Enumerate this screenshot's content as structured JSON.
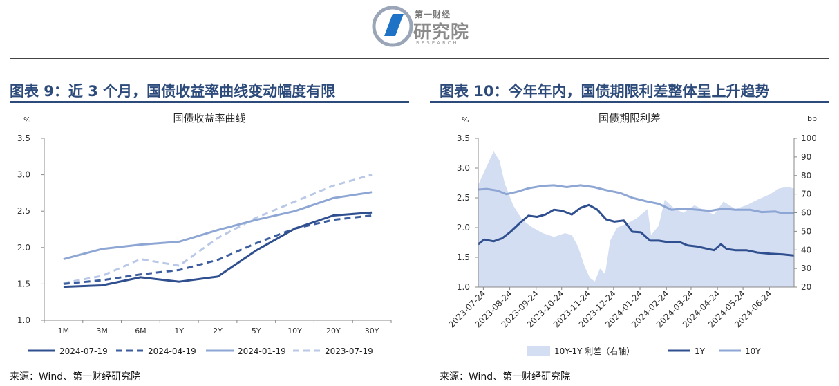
{
  "header": {
    "logo_small": "第一财经",
    "logo_main": "研究院",
    "logo_sub": "RESEARCH"
  },
  "left": {
    "figure_title": "图表 9：近 3 个月，国债收益率曲线变动幅度有限",
    "source": "来源：Wind、第一财经研究院"
  },
  "right": {
    "figure_title": "图表 10：今年年内，国债期限利差整体呈上升趋势",
    "source": "来源：Wind、第一财经研究院"
  },
  "colors": {
    "title_blue": "#2c4a7a",
    "dark": "#2f4f8f",
    "mid": "#4f6fad",
    "light": "#8ea6d4",
    "faint": "#b8c8e6",
    "area": "#d3def3"
  },
  "chart_data": [
    {
      "type": "line",
      "title": "国债收益率曲线",
      "ylabel": "%",
      "ylim": [
        1.0,
        3.5
      ],
      "yticks": [
        "3.5",
        "3.0",
        "2.5",
        "2.0",
        "1.5",
        "1.0"
      ],
      "categories": [
        "1M",
        "3M",
        "6M",
        "1Y",
        "2Y",
        "5Y",
        "10Y",
        "20Y",
        "30Y"
      ],
      "series": [
        {
          "name": "2024-07-19",
          "style": "solid",
          "color": "#2f4f8f",
          "values": [
            1.46,
            1.48,
            1.59,
            1.53,
            1.6,
            1.96,
            2.26,
            2.44,
            2.48
          ]
        },
        {
          "name": "2024-04-19",
          "style": "dashed",
          "color": "#3d5e9e",
          "values": [
            1.5,
            1.55,
            1.63,
            1.69,
            1.83,
            2.06,
            2.26,
            2.38,
            2.44
          ]
        },
        {
          "name": "2024-01-19",
          "style": "solid",
          "color": "#8ea6d4",
          "values": [
            1.84,
            1.98,
            2.04,
            2.08,
            2.24,
            2.38,
            2.5,
            2.68,
            2.76
          ]
        },
        {
          "name": "2023-07-19",
          "style": "dashed",
          "color": "#b8c8e6",
          "values": [
            1.51,
            1.61,
            1.84,
            1.75,
            2.13,
            2.41,
            2.63,
            2.85,
            3.0
          ]
        }
      ],
      "legend_position": "bottom",
      "grid": false
    },
    {
      "type": "line",
      "title": "国债期限利差",
      "ylabel": "%",
      "y2label": "bp",
      "ylim": [
        1.0,
        3.5
      ],
      "y2lim": [
        20,
        100
      ],
      "yticks": [
        "3.5",
        "3.0",
        "2.5",
        "2.0",
        "1.5",
        "1.0"
      ],
      "y2ticks": [
        "100",
        "90",
        "80",
        "70",
        "60",
        "50",
        "40",
        "30",
        "20"
      ],
      "x_labels": [
        "2023-07-24",
        "2023-08-24",
        "2023-09-24",
        "2023-10-24",
        "2023-11-24",
        "2023-12-24",
        "2024-01-24",
        "2024-02-24",
        "2024-03-24",
        "2024-04-24",
        "2024-05-24",
        "2024-06-24"
      ],
      "x_range": [
        "2023-07-18",
        "2024-07-23"
      ],
      "series": [
        {
          "name": "10Y-1Y 利差（右轴）",
          "kind": "area",
          "axis": "right",
          "color": "#d3def3",
          "points": [
            [
              "2023-07-18",
              75
            ],
            [
              "2023-07-28",
              85
            ],
            [
              "2023-08-05",
              93
            ],
            [
              "2023-08-12",
              88
            ],
            [
              "2023-08-18",
              76
            ],
            [
              "2023-08-28",
              64
            ],
            [
              "2023-09-08",
              56
            ],
            [
              "2023-09-20",
              52
            ],
            [
              "2023-10-02",
              49
            ],
            [
              "2023-10-15",
              47
            ],
            [
              "2023-10-28",
              49
            ],
            [
              "2023-11-05",
              48
            ],
            [
              "2023-11-12",
              42
            ],
            [
              "2023-11-20",
              31
            ],
            [
              "2023-11-26",
              25
            ],
            [
              "2023-12-02",
              23
            ],
            [
              "2023-12-08",
              30
            ],
            [
              "2023-12-14",
              27
            ],
            [
              "2023-12-20",
              45
            ],
            [
              "2023-12-28",
              52
            ],
            [
              "2024-01-08",
              54
            ],
            [
              "2024-01-20",
              57
            ],
            [
              "2024-02-02",
              62
            ],
            [
              "2024-02-06",
              48
            ],
            [
              "2024-02-15",
              53
            ],
            [
              "2024-02-22",
              67
            ],
            [
              "2024-03-05",
              62
            ],
            [
              "2024-03-15",
              60
            ],
            [
              "2024-03-28",
              64
            ],
            [
              "2024-04-10",
              61
            ],
            [
              "2024-04-20",
              59
            ],
            [
              "2024-05-01",
              66
            ],
            [
              "2024-05-15",
              62
            ],
            [
              "2024-05-28",
              64
            ],
            [
              "2024-06-10",
              67
            ],
            [
              "2024-06-25",
              70
            ],
            [
              "2024-07-05",
              73
            ],
            [
              "2024-07-15",
              74
            ],
            [
              "2024-07-23",
              73
            ]
          ]
        },
        {
          "name": "1Y",
          "kind": "line",
          "axis": "left",
          "color": "#2f4f8f",
          "points": [
            [
              "2023-07-18",
              1.72
            ],
            [
              "2023-07-25",
              1.8
            ],
            [
              "2023-08-05",
              1.77
            ],
            [
              "2023-08-15",
              1.82
            ],
            [
              "2023-08-25",
              1.93
            ],
            [
              "2023-09-05",
              2.08
            ],
            [
              "2023-09-15",
              2.2
            ],
            [
              "2023-09-25",
              2.18
            ],
            [
              "2023-10-05",
              2.22
            ],
            [
              "2023-10-15",
              2.3
            ],
            [
              "2023-10-25",
              2.28
            ],
            [
              "2023-11-05",
              2.22
            ],
            [
              "2023-11-15",
              2.33
            ],
            [
              "2023-11-25",
              2.38
            ],
            [
              "2023-12-05",
              2.3
            ],
            [
              "2023-12-15",
              2.14
            ],
            [
              "2023-12-25",
              2.1
            ],
            [
              "2024-01-05",
              2.12
            ],
            [
              "2024-01-15",
              1.93
            ],
            [
              "2024-01-25",
              1.92
            ],
            [
              "2024-02-05",
              1.78
            ],
            [
              "2024-02-15",
              1.78
            ],
            [
              "2024-02-28",
              1.75
            ],
            [
              "2024-03-10",
              1.76
            ],
            [
              "2024-03-20",
              1.7
            ],
            [
              "2024-04-01",
              1.68
            ],
            [
              "2024-04-10",
              1.65
            ],
            [
              "2024-04-20",
              1.62
            ],
            [
              "2024-04-28",
              1.72
            ],
            [
              "2024-05-05",
              1.64
            ],
            [
              "2024-05-15",
              1.62
            ],
            [
              "2024-05-28",
              1.62
            ],
            [
              "2024-06-10",
              1.58
            ],
            [
              "2024-06-25",
              1.56
            ],
            [
              "2024-07-10",
              1.55
            ],
            [
              "2024-07-23",
              1.53
            ]
          ]
        },
        {
          "name": "10Y",
          "kind": "line",
          "axis": "left",
          "color": "#8ea6d4",
          "points": [
            [
              "2023-07-18",
              2.64
            ],
            [
              "2023-07-28",
              2.65
            ],
            [
              "2023-08-10",
              2.62
            ],
            [
              "2023-08-20",
              2.56
            ],
            [
              "2023-09-01",
              2.6
            ],
            [
              "2023-09-15",
              2.66
            ],
            [
              "2023-10-01",
              2.7
            ],
            [
              "2023-10-15",
              2.71
            ],
            [
              "2023-10-30",
              2.68
            ],
            [
              "2023-11-15",
              2.71
            ],
            [
              "2023-12-01",
              2.68
            ],
            [
              "2023-12-15",
              2.63
            ],
            [
              "2024-01-01",
              2.58
            ],
            [
              "2024-01-15",
              2.5
            ],
            [
              "2024-02-01",
              2.44
            ],
            [
              "2024-02-15",
              2.4
            ],
            [
              "2024-03-01",
              2.3
            ],
            [
              "2024-03-15",
              2.32
            ],
            [
              "2024-04-01",
              2.3
            ],
            [
              "2024-04-15",
              2.28
            ],
            [
              "2024-05-01",
              2.32
            ],
            [
              "2024-05-15",
              2.3
            ],
            [
              "2024-06-01",
              2.3
            ],
            [
              "2024-06-15",
              2.26
            ],
            [
              "2024-07-01",
              2.27
            ],
            [
              "2024-07-10",
              2.24
            ],
            [
              "2024-07-23",
              2.25
            ]
          ]
        }
      ],
      "legend_position": "bottom",
      "grid": false
    }
  ]
}
